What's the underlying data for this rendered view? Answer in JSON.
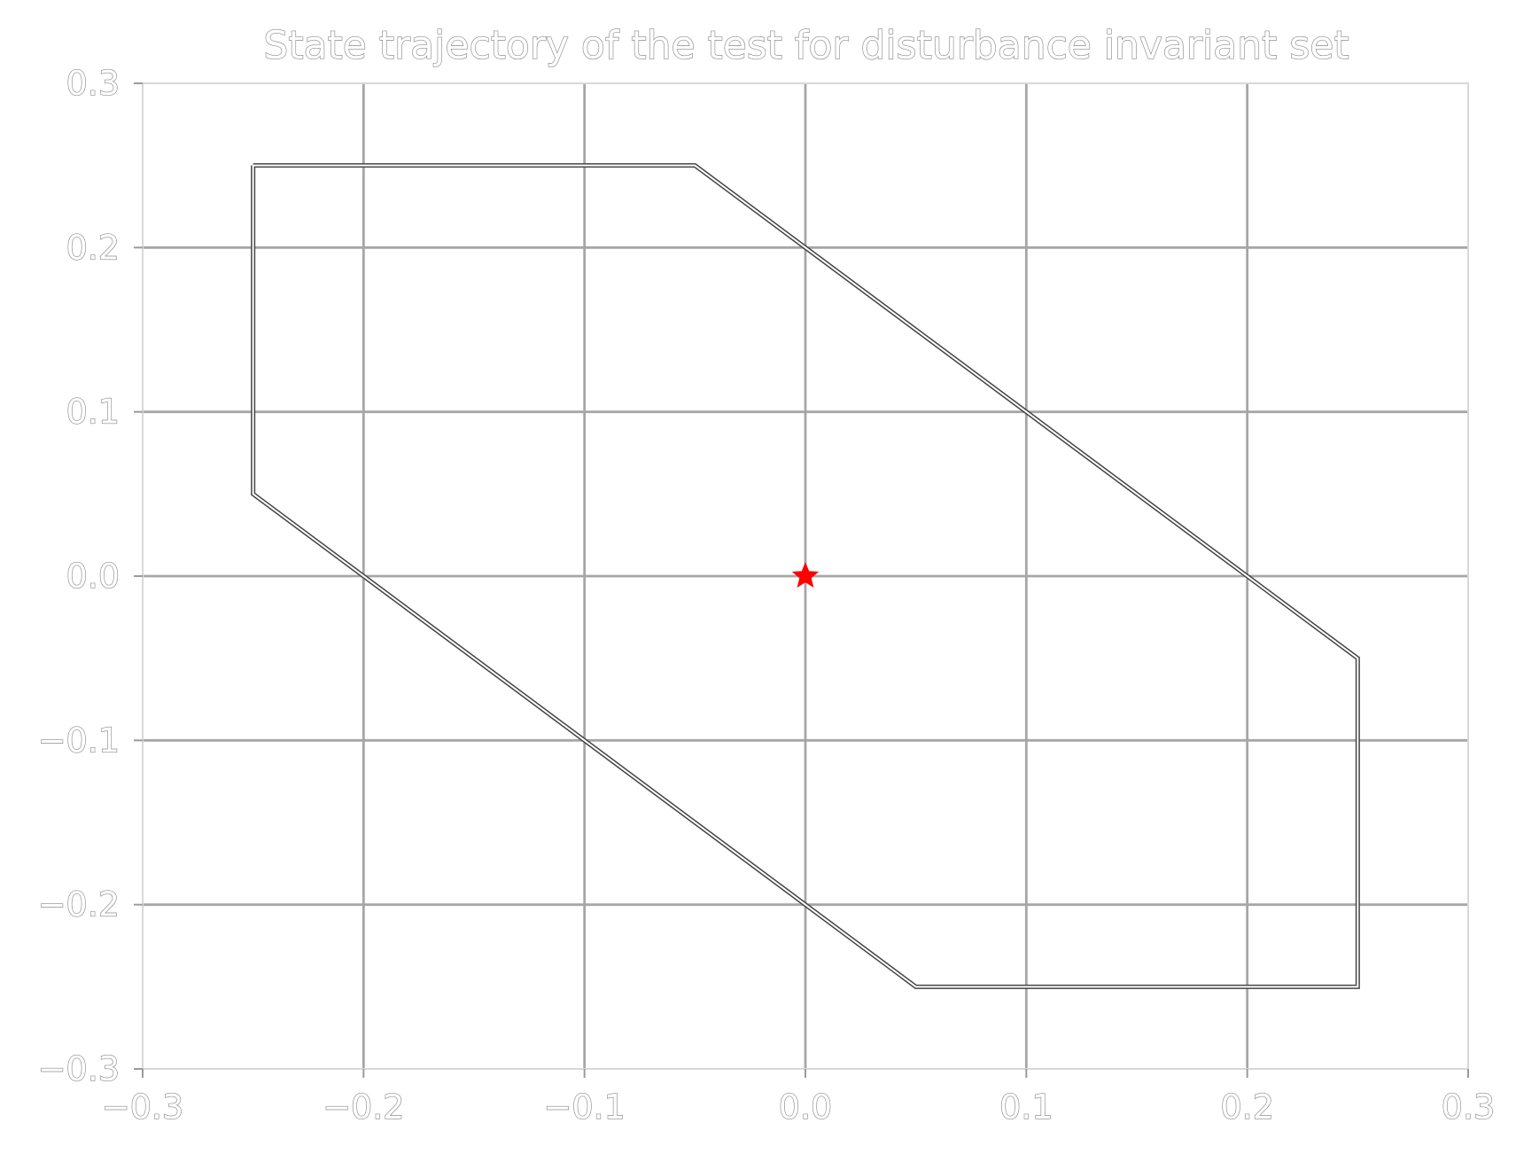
{
  "chart_data": {
    "type": "line",
    "title": "State trajectory of the test for disturbance invariant set",
    "xlabel": "",
    "ylabel": "",
    "xlim": [
      -0.3,
      0.3
    ],
    "ylim": [
      -0.3,
      0.3
    ],
    "grid": true,
    "xticks": [
      -0.3,
      -0.2,
      -0.1,
      0.0,
      0.1,
      0.2,
      0.3
    ],
    "yticks": [
      -0.3,
      -0.2,
      -0.1,
      0.0,
      0.1,
      0.2,
      0.3
    ],
    "xtick_labels": [
      "−0.3",
      "−0.2",
      "−0.1",
      "0.0",
      "0.1",
      "0.2",
      "0.3"
    ],
    "ytick_labels": [
      "−0.3",
      "−0.2",
      "−0.1",
      "0.0",
      "0.1",
      "0.2",
      "0.3"
    ],
    "series": [
      {
        "kind": "polygon",
        "x": [
          -0.25,
          -0.05,
          0.25,
          0.25,
          0.05,
          -0.25,
          -0.25
        ],
        "y": [
          0.25,
          0.25,
          -0.05,
          -0.25,
          -0.25,
          0.05,
          0.25
        ],
        "color": "#444444"
      },
      {
        "kind": "marker",
        "marker": "star",
        "x": [
          0.0
        ],
        "y": [
          0.0
        ],
        "color": "#ff0000"
      }
    ]
  }
}
